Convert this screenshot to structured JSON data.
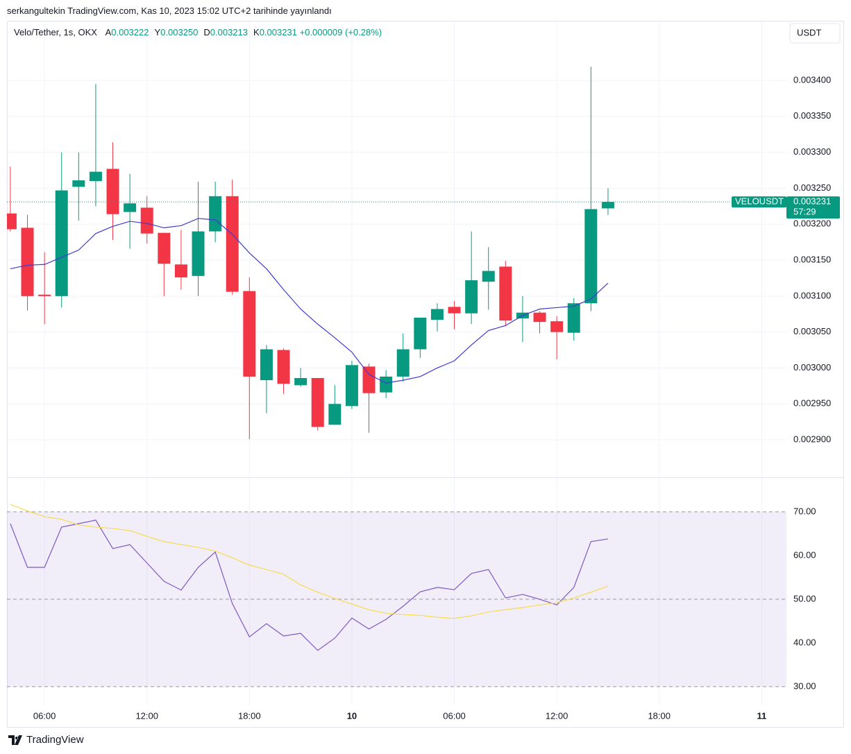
{
  "published_note": "serkangultekin TradingView.com, Kas 10, 2023 15:02 UTC+2 tarihinde yayınlandı",
  "legend_header": {
    "title": "Velo/Tether, 1s, OKX",
    "fields": [
      {
        "key": "A",
        "value": "0.003222"
      },
      {
        "key": "Y",
        "value": "0.003250"
      },
      {
        "key": "D",
        "value": "0.003213"
      },
      {
        "key": "K",
        "value": "0.003231"
      }
    ],
    "change": "+0.000009 (+0.28%)"
  },
  "currency_button": "USDT",
  "footer_brand": "TradingView",
  "chart_data": [
    {
      "type": "candlestick",
      "x": [
        4,
        5,
        6,
        7,
        8,
        9,
        10,
        11,
        12,
        13,
        14,
        15,
        16,
        17,
        18,
        19,
        20,
        21,
        22,
        23,
        24,
        25,
        26,
        27,
        28,
        29,
        30,
        31,
        32,
        33,
        34,
        35,
        36,
        37,
        38,
        39
      ],
      "open": [
        0.003215,
        0.003195,
        0.003102,
        0.0031,
        0.003252,
        0.00326,
        0.003277,
        0.003217,
        0.003223,
        0.003188,
        0.003144,
        0.003128,
        0.00319,
        0.003239,
        0.003107,
        0.002983,
        0.003025,
        0.002976,
        0.002986,
        0.002921,
        0.002947,
        0.003002,
        0.002966,
        0.002988,
        0.003026,
        0.003067,
        0.003085,
        0.003076,
        0.00312,
        0.003141,
        0.003069,
        0.003077,
        0.003065,
        0.003049,
        0.00309,
        0.003222
      ],
      "high": [
        0.00328,
        0.003213,
        0.003161,
        0.0033,
        0.0033,
        0.003395,
        0.003314,
        0.00327,
        0.003239,
        0.003188,
        0.003192,
        0.003259,
        0.003259,
        0.003262,
        0.003126,
        0.003032,
        0.003027,
        0.003,
        0.002986,
        0.002976,
        0.00301,
        0.003006,
        0.002997,
        0.003048,
        0.00307,
        0.00309,
        0.003093,
        0.00319,
        0.003168,
        0.003149,
        0.0031,
        0.003079,
        0.003072,
        0.003097,
        0.003419,
        0.00325
      ],
      "low": [
        0.00319,
        0.00308,
        0.003061,
        0.003084,
        0.003205,
        0.003225,
        0.003178,
        0.003166,
        0.003173,
        0.0031,
        0.003109,
        0.0031,
        0.003175,
        0.003102,
        0.002901,
        0.002937,
        0.002964,
        0.002974,
        0.002913,
        0.002921,
        0.002943,
        0.00291,
        0.002958,
        0.002981,
        0.003014,
        0.003051,
        0.003054,
        0.003061,
        0.003081,
        0.003058,
        0.003036,
        0.003048,
        0.003012,
        0.003038,
        0.003079,
        0.003213
      ],
      "close": [
        0.003193,
        0.0031,
        0.0031,
        0.003247,
        0.003261,
        0.003273,
        0.003214,
        0.003229,
        0.003187,
        0.003145,
        0.003126,
        0.00319,
        0.003239,
        0.003106,
        0.002988,
        0.003026,
        0.002978,
        0.002986,
        0.002918,
        0.00295,
        0.003004,
        0.002965,
        0.002988,
        0.003026,
        0.00307,
        0.003082,
        0.003076,
        0.003122,
        0.003135,
        0.003066,
        0.003077,
        0.003064,
        0.00305,
        0.00309,
        0.003221,
        0.003231
      ],
      "up_color": "#089981",
      "down_color": "#f23645",
      "xlim": [
        3.8,
        49.45
      ],
      "ylim": [
        0.002848,
        0.003454
      ],
      "yticks": [
        {
          "value": 0.0029,
          "label": "0.002900"
        },
        {
          "value": 0.00295,
          "label": "0.002950"
        },
        {
          "value": 0.003,
          "label": "0.003000"
        },
        {
          "value": 0.00305,
          "label": "0.003050"
        },
        {
          "value": 0.0031,
          "label": "0.003100"
        },
        {
          "value": 0.00315,
          "label": "0.003150"
        },
        {
          "value": 0.0032,
          "label": "0.003200"
        },
        {
          "value": 0.00325,
          "label": "0.003250"
        },
        {
          "value": 0.0033,
          "label": "0.003300"
        },
        {
          "value": 0.00335,
          "label": "0.003350"
        },
        {
          "value": 0.0034,
          "label": "0.003400"
        }
      ],
      "grid": true,
      "overlays": [
        {
          "type": "line",
          "color": "#3f3ad0",
          "values": [
            0.003138,
            0.003143,
            0.003144,
            0.003154,
            0.003164,
            0.003187,
            0.003197,
            0.003204,
            0.003201,
            0.003195,
            0.003198,
            0.003208,
            0.003206,
            0.003186,
            0.00316,
            0.003138,
            0.003109,
            0.003082,
            0.003061,
            0.003042,
            0.003022,
            0.002991,
            0.002979,
            0.002983,
            0.002988,
            0.003,
            0.00301,
            0.003032,
            0.003052,
            0.003059,
            0.003073,
            0.003082,
            0.003084,
            0.003086,
            0.003096,
            0.003118
          ]
        }
      ],
      "last_price": {
        "symbol": "VELOUSDT",
        "value": 0.003231,
        "label": "0.003231",
        "countdown": "57:29"
      }
    },
    {
      "type": "line",
      "x": [
        4,
        5,
        6,
        7,
        8,
        9,
        10,
        11,
        12,
        13,
        14,
        15,
        16,
        17,
        18,
        19,
        20,
        21,
        22,
        23,
        24,
        25,
        26,
        27,
        28,
        29,
        30,
        31,
        32,
        33,
        34,
        35,
        36,
        37,
        38,
        39
      ],
      "series": [
        {
          "color": "#7e57c2",
          "values": [
            67.3,
            57.3,
            57.3,
            66.5,
            67.3,
            68.1,
            61.6,
            62.5,
            58.3,
            54.1,
            52.1,
            57.3,
            60.8,
            49,
            41.4,
            44.4,
            41.6,
            42.2,
            38.3,
            41.1,
            45.7,
            43.2,
            45.4,
            48.4,
            51.7,
            52.7,
            52.2,
            55.9,
            56.8,
            50.3,
            51.1,
            50,
            48.7,
            52.7,
            63.2,
            63.8
          ]
        },
        {
          "color": "#f5dc4e",
          "values": [
            71.7,
            70.2,
            68.9,
            68.3,
            67,
            66.5,
            66.2,
            65.7,
            64.4,
            63.2,
            62.5,
            61.9,
            61,
            59.5,
            57.8,
            56.8,
            55.7,
            53.3,
            51.6,
            50.2,
            48.9,
            47.6,
            46.8,
            46.5,
            46.3,
            45.9,
            45.6,
            46.2,
            47.1,
            47.6,
            48.1,
            48.7,
            49.2,
            50.3,
            51.6,
            53
          ]
        }
      ],
      "xlim": [
        3.8,
        49.45
      ],
      "ylim": [
        25.7,
        77.6
      ],
      "xticks": [
        {
          "value": 6,
          "label": "06:00"
        },
        {
          "value": 12,
          "label": "12:00"
        },
        {
          "value": 18,
          "label": "18:00"
        },
        {
          "value": 24,
          "label": "10"
        },
        {
          "value": 30,
          "label": "06:00"
        },
        {
          "value": 36,
          "label": "12:00"
        },
        {
          "value": 42,
          "label": "18:00"
        },
        {
          "value": 48,
          "label": "11"
        }
      ],
      "yticks": [
        {
          "value": 30,
          "label": "30.00"
        },
        {
          "value": 40,
          "label": "40.00"
        },
        {
          "value": 50,
          "label": "50.00"
        },
        {
          "value": 60,
          "label": "60.00"
        },
        {
          "value": 70,
          "label": "70.00"
        }
      ],
      "grid": false,
      "band": [
        30,
        70
      ],
      "band_color": "#7e57c2",
      "hlines": [
        70,
        50,
        30
      ]
    }
  ]
}
